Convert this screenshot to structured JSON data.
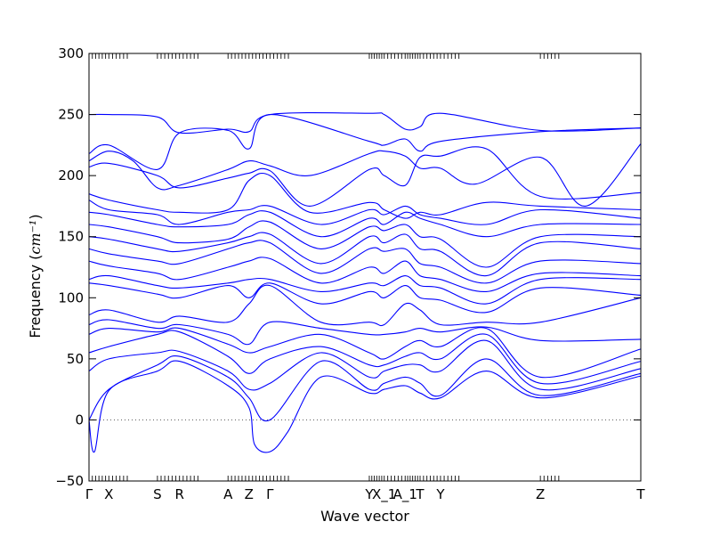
{
  "chart_data": {
    "type": "line",
    "title": "",
    "xlabel": "Wave vector",
    "ylabel": "Frequency",
    "ylabel_unit": "cm⁻¹",
    "ylim": [
      -50,
      300
    ],
    "yticks": [
      -50,
      0,
      50,
      100,
      150,
      200,
      250,
      300
    ],
    "xlim": [
      0,
      1
    ],
    "grid": false,
    "line_color": "#0000ff",
    "zero_line_color": "#555555",
    "x_labels": [
      {
        "label": "Γ",
        "x": 0.0
      },
      {
        "label": "X",
        "x": 0.036
      },
      {
        "label": "S",
        "x": 0.124
      },
      {
        "label": "R",
        "x": 0.164
      },
      {
        "label": "A",
        "x": 0.252
      },
      {
        "label": "Z",
        "x": 0.29
      },
      {
        "label": "Γ",
        "x": 0.328
      },
      {
        "label": "Y",
        "x": 0.508
      },
      {
        "label": "X_1",
        "x": 0.535
      },
      {
        "label": "A_1",
        "x": 0.573
      },
      {
        "label": "T",
        "x": 0.6
      },
      {
        "label": "Y",
        "x": 0.637
      },
      {
        "label": "Z",
        "x": 0.818
      },
      {
        "label": "T",
        "x": 1.0
      }
    ],
    "branches": [
      {
        "x": [
          0,
          0.036,
          0.124,
          0.164,
          0.252,
          0.29,
          0.328,
          0.508,
          0.535,
          0.573,
          0.6,
          0.637,
          0.818,
          1.0
        ],
        "y": [
          250,
          250,
          248,
          235,
          238,
          236,
          250,
          251,
          250,
          238,
          240,
          251,
          237,
          239
        ]
      },
      {
        "x": [
          0,
          0.036,
          0.124,
          0.164,
          0.252,
          0.29,
          0.328,
          0.508,
          0.535,
          0.573,
          0.6,
          0.637,
          0.818,
          1.0
        ],
        "y": [
          218,
          225,
          205,
          235,
          237,
          222,
          250,
          228,
          225,
          230,
          220,
          228,
          236,
          239
        ]
      },
      {
        "x": [
          0,
          0.036,
          0.08,
          0.124,
          0.164,
          0.252,
          0.29,
          0.328,
          0.4,
          0.508,
          0.535,
          0.573,
          0.6,
          0.637,
          0.7,
          0.818,
          0.9,
          1.0
        ],
        "y": [
          212,
          220,
          212,
          190,
          192,
          205,
          212,
          208,
          200,
          218,
          220,
          216,
          206,
          206,
          193,
          215,
          175,
          226
        ]
      },
      {
        "x": [
          0,
          0.036,
          0.124,
          0.164,
          0.252,
          0.29,
          0.328,
          0.4,
          0.508,
          0.535,
          0.573,
          0.6,
          0.637,
          0.72,
          0.818,
          1.0
        ],
        "y": [
          207,
          210,
          200,
          190,
          198,
          202,
          204,
          175,
          205,
          200,
          192,
          215,
          216,
          222,
          183,
          186
        ]
      },
      {
        "x": [
          0,
          0.036,
          0.124,
          0.164,
          0.252,
          0.29,
          0.328,
          0.4,
          0.508,
          0.535,
          0.573,
          0.6,
          0.637,
          0.72,
          0.818,
          1.0
        ],
        "y": [
          185,
          180,
          172,
          170,
          172,
          196,
          200,
          170,
          178,
          172,
          165,
          170,
          168,
          178,
          175,
          172
        ]
      },
      {
        "x": [
          0,
          0.036,
          0.124,
          0.164,
          0.252,
          0.29,
          0.328,
          0.42,
          0.508,
          0.535,
          0.573,
          0.6,
          0.637,
          0.72,
          0.818,
          1.0
        ],
        "y": [
          180,
          172,
          168,
          160,
          170,
          172,
          175,
          160,
          172,
          168,
          175,
          168,
          165,
          160,
          172,
          165
        ]
      },
      {
        "x": [
          0,
          0.036,
          0.124,
          0.164,
          0.252,
          0.29,
          0.328,
          0.42,
          0.508,
          0.535,
          0.573,
          0.6,
          0.637,
          0.72,
          0.818,
          1.0
        ],
        "y": [
          170,
          168,
          160,
          158,
          160,
          168,
          170,
          150,
          165,
          160,
          170,
          165,
          160,
          150,
          160,
          160
        ]
      },
      {
        "x": [
          0,
          0.036,
          0.124,
          0.164,
          0.252,
          0.29,
          0.328,
          0.42,
          0.508,
          0.535,
          0.573,
          0.6,
          0.637,
          0.72,
          0.818,
          1.0
        ],
        "y": [
          160,
          158,
          150,
          145,
          148,
          158,
          162,
          140,
          158,
          155,
          160,
          150,
          148,
          125,
          150,
          150
        ]
      },
      {
        "x": [
          0,
          0.036,
          0.124,
          0.164,
          0.252,
          0.29,
          0.328,
          0.42,
          0.508,
          0.535,
          0.573,
          0.6,
          0.637,
          0.72,
          0.818,
          1.0
        ],
        "y": [
          150,
          148,
          140,
          138,
          145,
          150,
          152,
          128,
          150,
          145,
          152,
          140,
          138,
          118,
          145,
          140
        ]
      },
      {
        "x": [
          0,
          0.036,
          0.124,
          0.164,
          0.252,
          0.29,
          0.328,
          0.42,
          0.508,
          0.535,
          0.573,
          0.6,
          0.637,
          0.72,
          0.818,
          1.0
        ],
        "y": [
          140,
          136,
          130,
          128,
          140,
          145,
          145,
          120,
          140,
          138,
          140,
          128,
          125,
          112,
          130,
          128
        ]
      },
      {
        "x": [
          0,
          0.036,
          0.124,
          0.164,
          0.252,
          0.29,
          0.328,
          0.42,
          0.508,
          0.535,
          0.573,
          0.6,
          0.637,
          0.72,
          0.818,
          1.0
        ],
        "y": [
          130,
          126,
          120,
          115,
          125,
          130,
          132,
          112,
          125,
          120,
          130,
          118,
          115,
          105,
          120,
          118
        ]
      },
      {
        "x": [
          0,
          0.036,
          0.124,
          0.164,
          0.252,
          0.29,
          0.328,
          0.42,
          0.508,
          0.535,
          0.573,
          0.6,
          0.637,
          0.72,
          0.818,
          1.0
        ],
        "y": [
          115,
          118,
          110,
          108,
          112,
          115,
          115,
          105,
          112,
          110,
          118,
          110,
          108,
          95,
          115,
          115
        ]
      },
      {
        "x": [
          0,
          0.036,
          0.124,
          0.164,
          0.252,
          0.29,
          0.328,
          0.42,
          0.508,
          0.535,
          0.573,
          0.6,
          0.637,
          0.72,
          0.818,
          1.0
        ],
        "y": [
          112,
          110,
          103,
          100,
          110,
          100,
          112,
          95,
          105,
          100,
          110,
          100,
          98,
          88,
          108,
          102
        ]
      },
      {
        "x": [
          0,
          0.036,
          0.124,
          0.164,
          0.252,
          0.29,
          0.328,
          0.42,
          0.508,
          0.535,
          0.573,
          0.6,
          0.637,
          0.72,
          0.818,
          1.0
        ],
        "y": [
          86,
          90,
          80,
          85,
          80,
          95,
          110,
          80,
          80,
          78,
          95,
          90,
          78,
          80,
          80,
          100
        ]
      },
      {
        "x": [
          0,
          0.036,
          0.124,
          0.164,
          0.252,
          0.29,
          0.328,
          0.42,
          0.508,
          0.535,
          0.573,
          0.6,
          0.637,
          0.72,
          0.818,
          1.0
        ],
        "y": [
          78,
          82,
          75,
          78,
          70,
          62,
          80,
          75,
          70,
          70,
          72,
          75,
          72,
          76,
          65,
          66
        ]
      },
      {
        "x": [
          0,
          0.036,
          0.124,
          0.164,
          0.252,
          0.29,
          0.328,
          0.42,
          0.508,
          0.535,
          0.573,
          0.6,
          0.637,
          0.72,
          0.818,
          1.0
        ],
        "y": [
          70,
          75,
          72,
          75,
          62,
          55,
          60,
          70,
          55,
          50,
          60,
          65,
          60,
          75,
          35,
          58
        ]
      },
      {
        "x": [
          0,
          0.036,
          0.124,
          0.164,
          0.252,
          0.29,
          0.328,
          0.42,
          0.508,
          0.535,
          0.573,
          0.6,
          0.637,
          0.72,
          0.818,
          1.0
        ],
        "y": [
          55,
          60,
          70,
          72,
          52,
          38,
          50,
          60,
          45,
          45,
          52,
          55,
          50,
          70,
          30,
          48
        ]
      },
      {
        "x": [
          0,
          0.036,
          0.124,
          0.164,
          0.252,
          0.29,
          0.328,
          0.42,
          0.508,
          0.535,
          0.573,
          0.6,
          0.637,
          0.72,
          0.818,
          1.0
        ],
        "y": [
          40,
          50,
          55,
          56,
          40,
          25,
          30,
          55,
          35,
          40,
          45,
          45,
          40,
          65,
          25,
          42
        ]
      },
      {
        "x": [
          0,
          0.036,
          0.124,
          0.164,
          0.252,
          0.29,
          0.328,
          0.42,
          0.508,
          0.535,
          0.573,
          0.6,
          0.637,
          0.72,
          0.818,
          1.0
        ],
        "y": [
          0,
          25,
          45,
          52,
          35,
          18,
          0,
          48,
          25,
          30,
          35,
          30,
          20,
          50,
          20,
          38
        ]
      },
      {
        "x": [
          0,
          0.01,
          0.036,
          0.124,
          0.164,
          0.252,
          0.29,
          0.3,
          0.328,
          0.36,
          0.42,
          0.508,
          0.535,
          0.573,
          0.6,
          0.637,
          0.72,
          0.818,
          1.0
        ],
        "y": [
          0,
          -26,
          24,
          40,
          48,
          28,
          10,
          -20,
          -26,
          -10,
          35,
          22,
          25,
          28,
          22,
          18,
          40,
          18,
          36
        ]
      }
    ]
  }
}
